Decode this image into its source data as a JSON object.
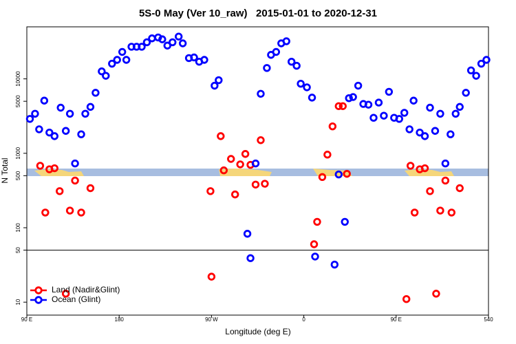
{
  "chart_data": {
    "type": "scatter",
    "title": "5S-0 May (Ver 10_raw)   2015-01-01 to 2020-12-31",
    "x_label": "Longitude (deg E)",
    "y_label": "N Total",
    "log_y": true,
    "hline": 50,
    "legend": "lower left",
    "xlim": [
      90,
      540
    ],
    "xticks": [
      {
        "value": 90,
        "label": "90 E"
      },
      180,
      {
        "value": 270,
        "label": "90 W"
      },
      {
        "value": 360,
        "label": "0"
      },
      {
        "value": 450,
        "label": "90 E"
      },
      540
    ],
    "ylim": [
      6.7,
      50000
    ],
    "yticks": [
      10,
      50,
      100,
      500,
      1000,
      5000,
      10000
    ],
    "series": [
      {
        "name": "Land (Nadir&Glint)",
        "color": "#ff0000",
        "x": [
          103,
          108,
          112,
          117,
          122,
          128,
          132,
          137,
          143,
          152,
          269,
          270,
          279,
          282,
          289,
          293,
          298,
          303,
          308,
          313,
          318,
          322,
          370,
          373,
          378,
          383,
          388,
          394,
          398,
          402,
          460,
          464,
          468,
          473,
          478,
          483,
          489,
          493,
          498,
          504,
          512
        ],
        "values": [
          680,
          160,
          610,
          630,
          310,
          13,
          170,
          430,
          160,
          340,
          310,
          22,
          1700,
          590,
          840,
          280,
          710,
          980,
          700,
          380,
          1500,
          390,
          60,
          120,
          480,
          960,
          2300,
          4300,
          4300,
          530,
          11,
          680,
          160,
          610,
          630,
          310,
          13,
          170,
          430,
          160,
          340
        ]
      },
      {
        "name": "Ocean (Glint)",
        "color": "#0000ff",
        "x": [
          93,
          98,
          102,
          107,
          112,
          117,
          123,
          128,
          132,
          137,
          143,
          147,
          152,
          157,
          163,
          167,
          173,
          178,
          183,
          187,
          192,
          197,
          202,
          207,
          212,
          218,
          222,
          227,
          232,
          238,
          242,
          248,
          253,
          258,
          263,
          273,
          277,
          305,
          308,
          313,
          318,
          324,
          328,
          333,
          338,
          343,
          348,
          353,
          357,
          363,
          368,
          371,
          390,
          394,
          400,
          404,
          408,
          413,
          418,
          423,
          428,
          433,
          438,
          443,
          448,
          453,
          458,
          463,
          467,
          473,
          478,
          483,
          488,
          493,
          498,
          503,
          508,
          512,
          518,
          523,
          528,
          533,
          538
        ],
        "values": [
          2900,
          3400,
          2100,
          5100,
          1900,
          1700,
          4100,
          2000,
          3400,
          730,
          1800,
          3400,
          4200,
          6500,
          12600,
          11000,
          16000,
          18000,
          23000,
          18000,
          27000,
          27000,
          27000,
          31000,
          35000,
          36000,
          34000,
          28000,
          31000,
          37000,
          30000,
          19000,
          19400,
          17000,
          18000,
          8100,
          9600,
          83,
          39,
          730,
          6300,
          14000,
          21000,
          23000,
          30000,
          32000,
          17000,
          15000,
          8600,
          7700,
          5600,
          41,
          32,
          520,
          120,
          5500,
          5700,
          8100,
          4600,
          4500,
          3000,
          4800,
          3200,
          6700,
          3000,
          2900,
          3500,
          2100,
          5100,
          1900,
          1700,
          4100,
          2000,
          3400,
          730,
          1800,
          3400,
          4200,
          6500,
          13000,
          11000,
          16000,
          18000
        ]
      }
    ]
  }
}
